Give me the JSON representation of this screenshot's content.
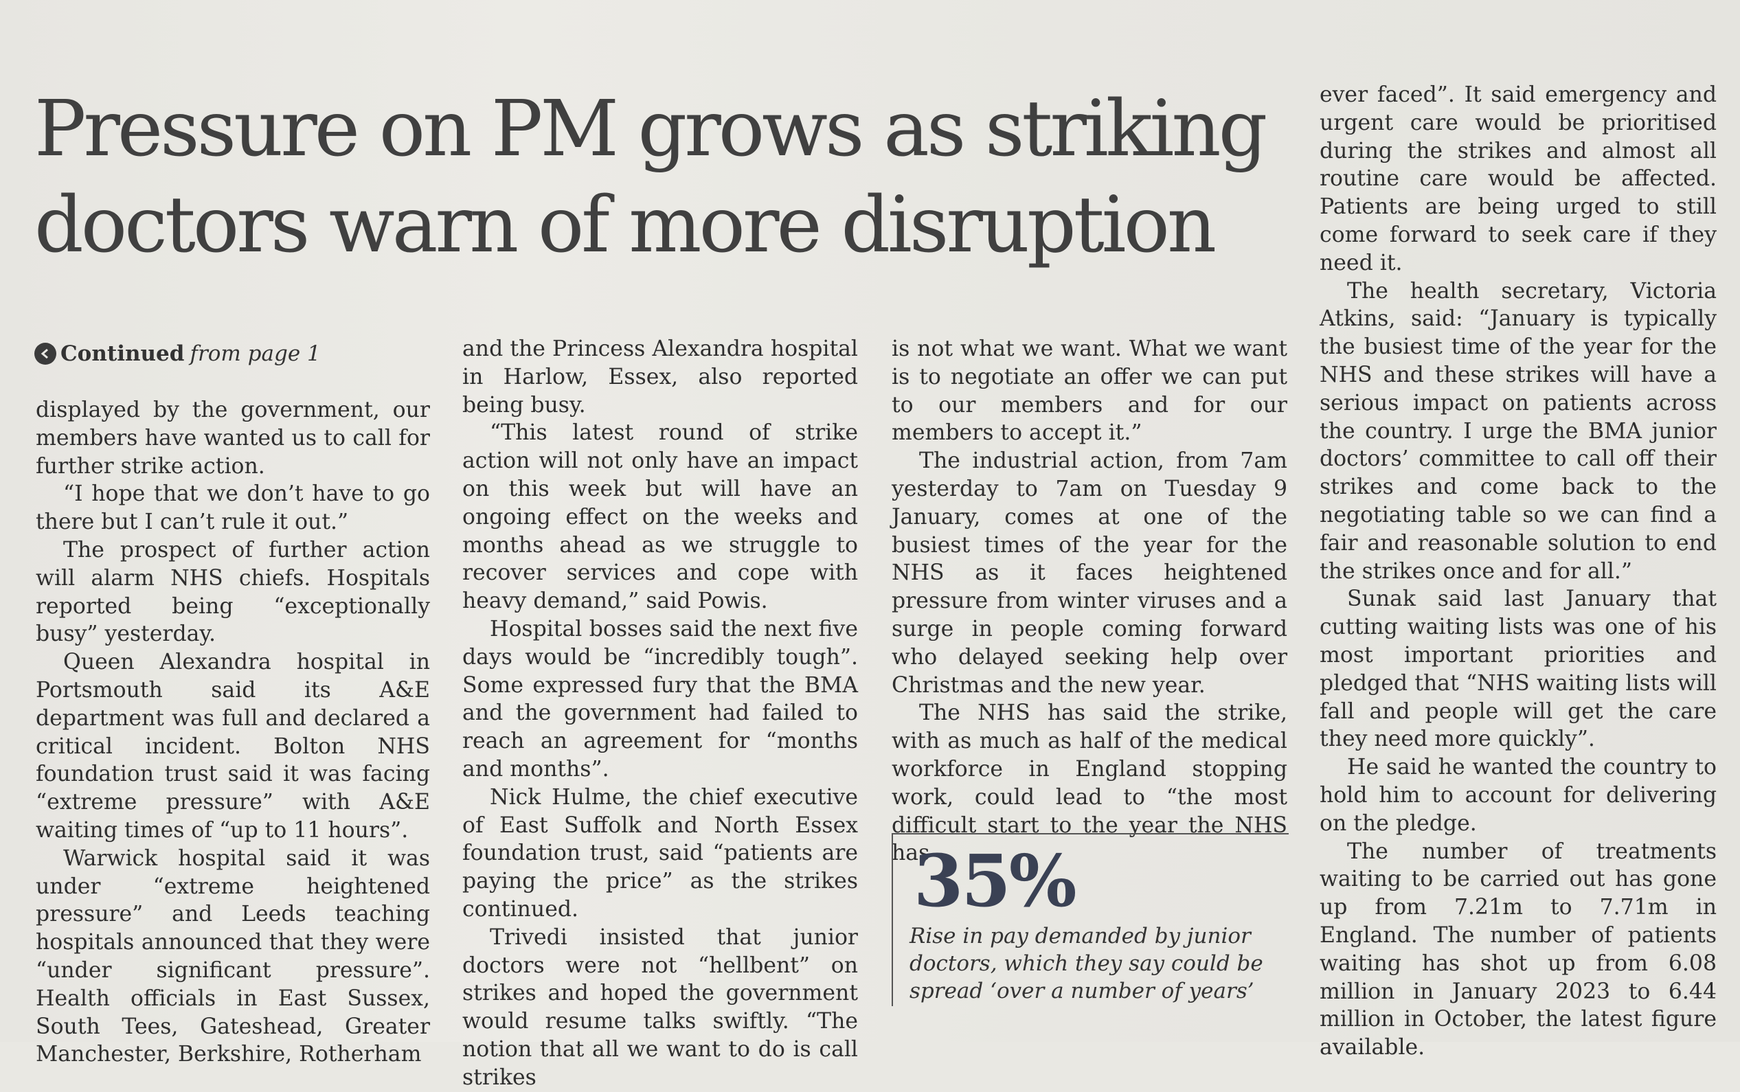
{
  "headline": {
    "line1": "Pressure on PM grows as striking",
    "line2": "doctors warn of more disruption"
  },
  "continued": {
    "label": "Continued",
    "from": "from page 1"
  },
  "columns": [
    [
      {
        "text": "displayed by the government, our members have wanted us to call for further strike action.",
        "indent": false
      },
      {
        "text": "“I hope that we don’t have to go there but I can’t rule it out.”",
        "indent": true
      },
      {
        "text": "The prospect of further action will alarm NHS chiefs. Hospitals reported being “exceptionally busy” yesterday.",
        "indent": true
      },
      {
        "text": "Queen Alexandra hospital in Portsmouth said its A&E department was full and declared a critical incident. Bolton NHS foundation trust said it was facing “extreme pressure” with A&E waiting times of “up to 11 hours”.",
        "indent": true
      },
      {
        "text": "Warwick hospital said it was under “extreme heightened pressure” and Leeds teaching hospitals announced that they were “under significant pressure”. Health officials in East Sussex, South Tees, Gateshead, Greater Manchester, Berkshire, Rotherham",
        "indent": true
      }
    ],
    [
      {
        "text": "and the Princess Alexandra hospital in Harlow, Essex, also reported being busy.",
        "indent": false
      },
      {
        "text": "“This latest round of strike action will not only have an impact on this week but will have an ongoing effect on the weeks and months ahead as we struggle to recover services and cope with heavy demand,” said Powis.",
        "indent": true
      },
      {
        "text": "Hospital bosses said the next five days would be “incredibly tough”. Some expressed fury that the BMA and the government had failed to reach an agreement for “months and months”.",
        "indent": true
      },
      {
        "text": "Nick Hulme, the chief executive of East Suffolk and North Essex foundation trust, said “patients are paying the price” as the strikes continued.",
        "indent": true
      },
      {
        "text": "Trivedi insisted that junior doctors were not “hellbent” on strikes and hoped the government would resume talks swiftly. “The notion that all we want to do is call strikes",
        "indent": true
      }
    ],
    [
      {
        "text": "is not what we want. What we want is to negotiate an offer we can put to our members and for our members to accept it.”",
        "indent": false
      },
      {
        "text": "The industrial action, from 7am yesterday to 7am on Tuesday 9 January, comes at one of the busiest times of the year for the NHS as it faces heightened pressure from winter viruses and a surge in people coming forward who delayed seeking help over Christmas and the new year.",
        "indent": true
      },
      {
        "text": "The NHS has said the strike, with as much as half of the medical workforce in England stopping work, could lead to “the most difficult start to the year the NHS has",
        "indent": true
      }
    ],
    [
      {
        "text": "ever faced”. It said emergency and urgent care would be prioritised during the strikes and almost all routine care would be affected. Patients are being urged to still come forward to seek care if they need it.",
        "indent": false
      },
      {
        "text": "The health secretary, Victoria Atkins, said: “January is typically the busiest time of the year for the NHS and these strikes will have a serious impact on patients across the country. I urge the BMA junior doctors’ committee to call off their strikes and come back to the negotiating table so we can find a fair and reasonable solution to end the strikes once and for all.”",
        "indent": true
      },
      {
        "text": "Sunak said last January that cutting waiting lists was one of his most important priorities and pledged that “NHS waiting lists will fall and people will get the care they need more quickly”.",
        "indent": true
      },
      {
        "text": "He said he wanted the country to hold him to account for delivering on the pledge.",
        "indent": true
      },
      {
        "text": "The number of treatments waiting to be carried out has gone up from 7.21m to 7.71m in England. The number of patients waiting has shot up from 6.08 million in January 2023 to 6.44 million in October, the latest figure available.",
        "indent": true
      }
    ]
  ],
  "callout": {
    "figure": "35%",
    "caption": "Rise in pay demanded by junior doctors, which they say could be spread ‘over a number of years’"
  }
}
